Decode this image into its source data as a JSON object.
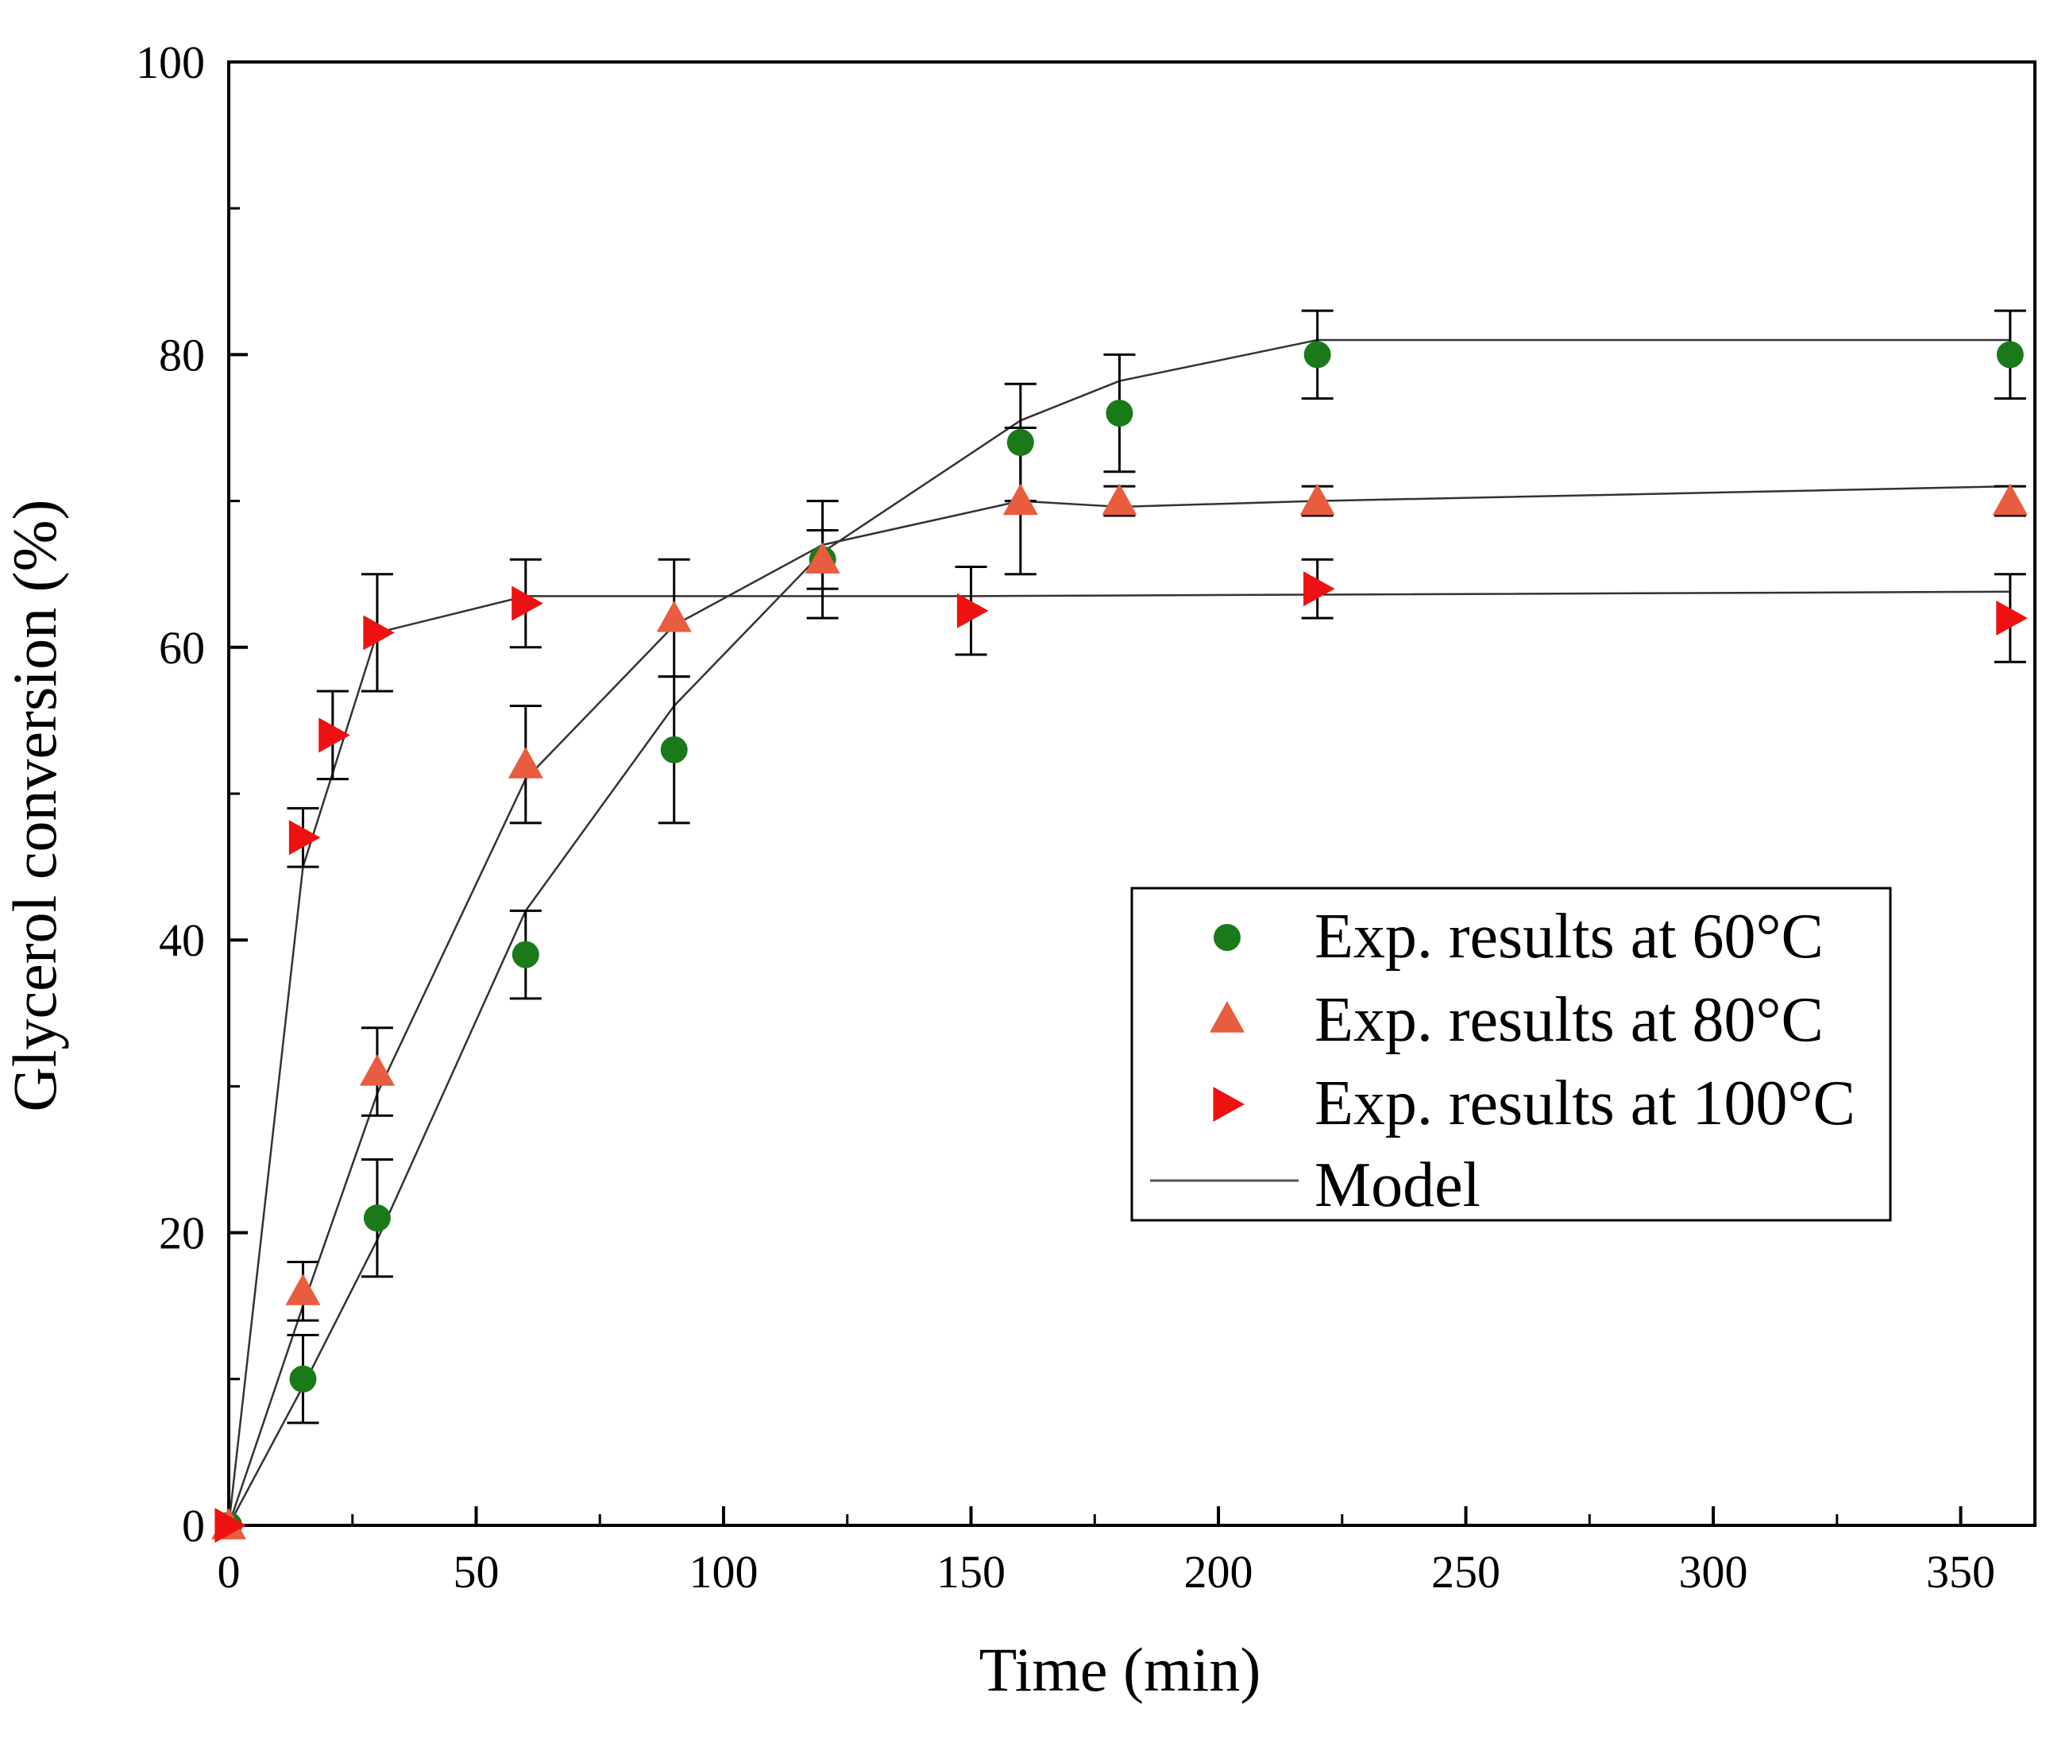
{
  "colors": {
    "series_60": "#1a7a1a",
    "series_80": "#e85c3f",
    "series_100": "#ee1111",
    "model": "#000000",
    "axis": "#000000"
  },
  "chart_data": {
    "type": "scatter",
    "title": "",
    "xlabel": "Time (min)",
    "ylabel": "Glycerol conversion (%)",
    "xlim": [
      0,
      365
    ],
    "ylim": [
      0,
      100
    ],
    "xticks": [
      0,
      50,
      100,
      150,
      200,
      250,
      300,
      350
    ],
    "yticks": [
      0,
      20,
      40,
      60,
      80,
      100
    ],
    "grid": false,
    "legend_position": "center-right",
    "series": [
      {
        "name": "Exp. results at 60°C",
        "marker": "circle",
        "color": "#1a7a1a",
        "points": [
          {
            "x": 0,
            "y": 0,
            "err": 0
          },
          {
            "x": 15,
            "y": 10,
            "err": 3
          },
          {
            "x": 30,
            "y": 21,
            "err": 4
          },
          {
            "x": 60,
            "y": 39,
            "err": 3
          },
          {
            "x": 90,
            "y": 53,
            "err": 5
          },
          {
            "x": 120,
            "y": 66,
            "err": 4
          },
          {
            "x": 160,
            "y": 74,
            "err": 4
          },
          {
            "x": 180,
            "y": 76,
            "err": 4
          },
          {
            "x": 220,
            "y": 80,
            "err": 3
          },
          {
            "x": 360,
            "y": 80,
            "err": 3
          }
        ]
      },
      {
        "name": "Exp. results at 80°C",
        "marker": "triangle-up",
        "color": "#e85c3f",
        "points": [
          {
            "x": 0,
            "y": 0,
            "err": 0
          },
          {
            "x": 15,
            "y": 16,
            "err": 2
          },
          {
            "x": 30,
            "y": 31,
            "err": 3
          },
          {
            "x": 60,
            "y": 52,
            "err": 4
          },
          {
            "x": 90,
            "y": 62,
            "err": 4
          },
          {
            "x": 120,
            "y": 66,
            "err": 2
          },
          {
            "x": 160,
            "y": 70,
            "err": 5
          },
          {
            "x": 180,
            "y": 70,
            "err": 1
          },
          {
            "x": 220,
            "y": 70,
            "err": 1
          },
          {
            "x": 360,
            "y": 70,
            "err": 1
          }
        ]
      },
      {
        "name": "Exp. results at 100°C",
        "marker": "triangle-right",
        "color": "#ee1111",
        "points": [
          {
            "x": 0,
            "y": 0,
            "err": 0
          },
          {
            "x": 15,
            "y": 47,
            "err": 2
          },
          {
            "x": 21,
            "y": 54,
            "err": 3
          },
          {
            "x": 30,
            "y": 61,
            "err": 4
          },
          {
            "x": 60,
            "y": 63,
            "err": 3
          },
          {
            "x": 150,
            "y": 62.5,
            "err": 3
          },
          {
            "x": 220,
            "y": 64,
            "err": 2
          },
          {
            "x": 360,
            "y": 62,
            "err": 3
          }
        ]
      }
    ],
    "model": {
      "name": "Model",
      "lines": [
        {
          "for": "60°C",
          "x": [
            0,
            15,
            30,
            60,
            90,
            120,
            160,
            180,
            220,
            360
          ],
          "y": [
            0,
            9.5,
            19.5,
            42,
            56,
            66.5,
            75.5,
            78.2,
            81,
            81
          ]
        },
        {
          "for": "80°C",
          "x": [
            0,
            15,
            30,
            60,
            90,
            120,
            160,
            180,
            220,
            360
          ],
          "y": [
            0,
            15,
            29.5,
            51,
            61.5,
            67,
            70,
            69.6,
            70,
            71
          ]
        },
        {
          "for": "100°C",
          "x": [
            0,
            15,
            30,
            60,
            150,
            220,
            360
          ],
          "y": [
            0,
            45,
            61,
            63.5,
            63.5,
            63.6,
            63.8
          ]
        }
      ]
    }
  }
}
